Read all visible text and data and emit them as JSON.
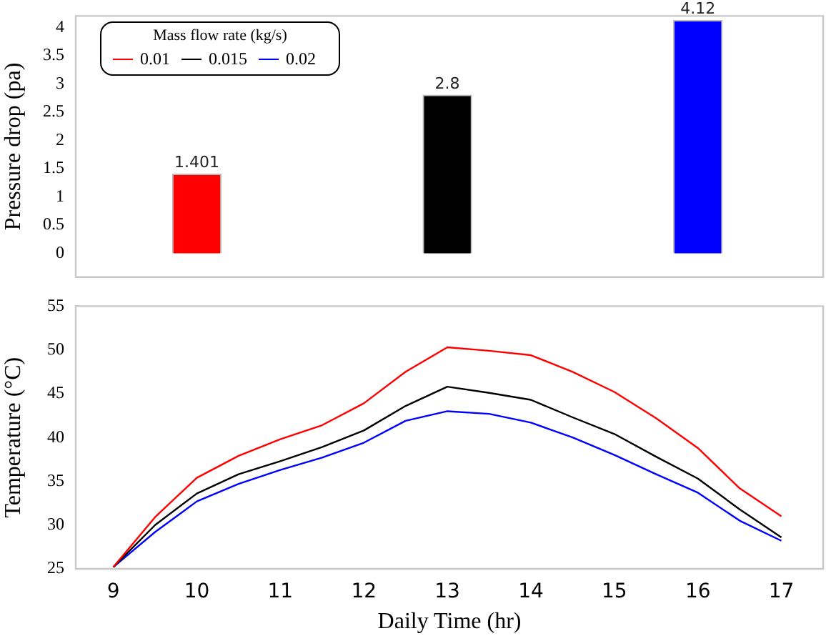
{
  "chart_data": [
    {
      "type": "bar",
      "ylabel": "Pressure drop (pa)",
      "x": [
        10,
        13,
        16
      ],
      "xlim": [
        8.55,
        17.5
      ],
      "ylim": [
        -0.42,
        4.2
      ],
      "yticks": [
        0,
        0.5,
        1,
        1.5,
        2,
        2.5,
        3,
        3.5,
        4
      ],
      "tick_labels": "y",
      "data_labels": true,
      "grid": false,
      "legend": "top left",
      "legend_title": "Mass flow rate (kg/s)",
      "series": [
        {
          "name": "0.01",
          "color": "#ff0000",
          "values": [
            1.401,
            null,
            null
          ]
        },
        {
          "name": "0.015",
          "color": "#000000",
          "values": [
            null,
            2.8,
            null
          ]
        },
        {
          "name": "0.02",
          "color": "#0000ff",
          "values": [
            null,
            null,
            4.12
          ]
        }
      ]
    },
    {
      "type": "line",
      "xlabel": "Daily Time (hr)",
      "ylabel": "Temperature (°C)",
      "x": [
        9,
        9.5,
        10,
        10.5,
        11,
        11.5,
        12,
        12.5,
        13,
        13.5,
        14,
        14.5,
        15,
        15.5,
        16,
        16.5,
        17
      ],
      "xlim": [
        8.55,
        17.5
      ],
      "xticks": [
        9,
        10,
        11,
        12,
        13,
        14,
        15,
        16,
        17
      ],
      "ylim": [
        25,
        55
      ],
      "yticks": [
        25,
        30,
        35,
        40,
        45,
        50,
        55
      ],
      "grid": false,
      "marker": "none",
      "line_style": "solid",
      "series": [
        {
          "color": "#ff0000",
          "values": [
            25.2,
            30.9,
            35.4,
            37.9,
            39.8,
            41.4,
            43.9,
            47.5,
            50.3,
            49.9,
            49.4,
            47.5,
            45.2,
            42.2,
            38.8,
            34.2,
            31.0
          ]
        },
        {
          "color": "#000000",
          "values": [
            25.2,
            30.0,
            33.6,
            35.8,
            37.3,
            38.9,
            40.8,
            43.6,
            45.8,
            45.1,
            44.3,
            42.3,
            40.4,
            37.8,
            35.3,
            31.8,
            28.6
          ]
        },
        {
          "color": "#0000ff",
          "values": [
            25.2,
            29.2,
            32.7,
            34.7,
            36.3,
            37.7,
            39.4,
            41.9,
            43.0,
            42.7,
            41.7,
            40.0,
            38.0,
            35.8,
            33.7,
            30.5,
            28.2
          ]
        }
      ]
    }
  ]
}
